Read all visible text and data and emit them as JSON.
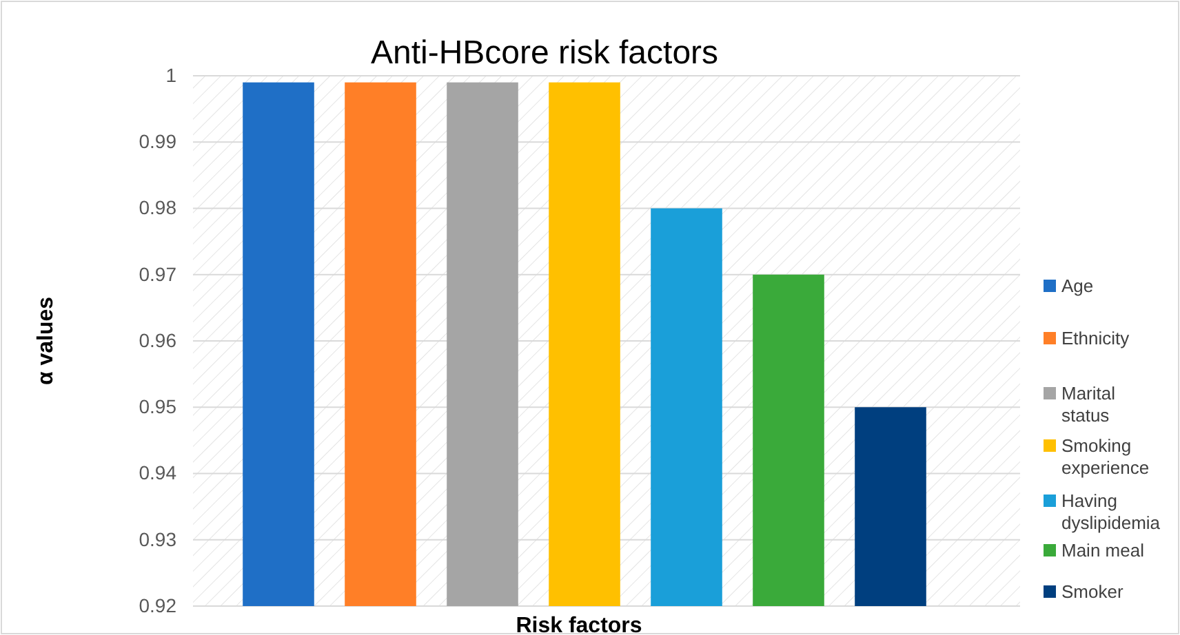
{
  "chart_data": {
    "type": "bar",
    "title": "Anti-HBcore risk factors",
    "xlabel": "Risk factors",
    "ylabel": "α values",
    "categories": [
      null,
      null,
      null,
      null,
      null,
      null,
      null
    ],
    "stacked": true,
    "series": [
      {
        "name": "Age",
        "color": "#1f6fc6",
        "values": [
          0.999,
          null,
          null,
          null,
          null,
          null,
          null
        ]
      },
      {
        "name": "Ethnicity",
        "color": "#ff7f27",
        "values": [
          null,
          0.999,
          null,
          null,
          null,
          null,
          null
        ]
      },
      {
        "name": "Marital status",
        "color": "#a5a5a5",
        "values": [
          null,
          null,
          0.999,
          null,
          null,
          null,
          null
        ]
      },
      {
        "name": "Smoking experience",
        "color": "#ffc000",
        "values": [
          null,
          null,
          null,
          0.999,
          null,
          null,
          null
        ]
      },
      {
        "name": "Having dyslipidemia",
        "color": "#1a9fd9",
        "values": [
          null,
          null,
          null,
          null,
          0.98,
          null,
          null
        ]
      },
      {
        "name": "Main meal",
        "color": "#3aaa3a",
        "values": [
          null,
          null,
          null,
          null,
          null,
          0.97,
          null
        ]
      },
      {
        "name": "Smoker",
        "color": "#003f7f",
        "values": [
          null,
          null,
          null,
          null,
          null,
          null,
          0.95
        ]
      }
    ],
    "ylim": [
      0.92,
      1
    ],
    "yticks": [
      0.92,
      0.93,
      0.94,
      0.95,
      0.96,
      0.97,
      0.98,
      0.99,
      1
    ],
    "grid": "y",
    "legend": "right"
  }
}
